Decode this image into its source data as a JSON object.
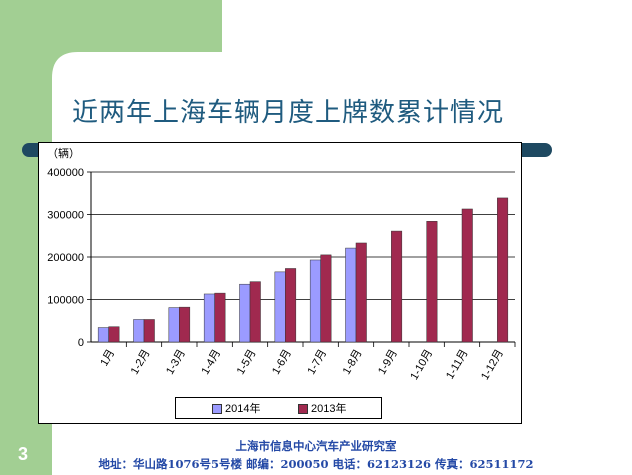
{
  "slide": {
    "title": "近两年上海车辆月度上牌数累计情况",
    "page_number": "3",
    "footer_org": "上海市信息中心汽车产业研究室",
    "footer_contact": "地址：华山路1076号5号楼 邮编：200050 电话：62123126 传真：62511172",
    "colors": {
      "green_panel": "#a2cf93",
      "title": "#1f5b7f",
      "bar_2014": "#9b9bff",
      "bar_2013": "#a0294f"
    }
  },
  "chart_data": {
    "type": "bar",
    "ylabel": "（辆）",
    "ylim": [
      0,
      400000
    ],
    "yticks": [
      "400000",
      "300000",
      "200000",
      "100000",
      "0"
    ],
    "categories": [
      "1月",
      "1-2月",
      "1-3月",
      "1-4月",
      "1-5月",
      "1-6月",
      "1-7月",
      "1-8月",
      "1-9月",
      "1-10月",
      "1-11月",
      "1-12月"
    ],
    "series": [
      {
        "name": "2014年",
        "color": "#9b9bff",
        "values": [
          34000,
          53000,
          81000,
          113000,
          136000,
          165000,
          193000,
          221000,
          null,
          null,
          null,
          null
        ]
      },
      {
        "name": "2013年",
        "color": "#a0294f",
        "values": [
          36000,
          53000,
          82000,
          115000,
          142000,
          173000,
          205000,
          233000,
          261000,
          284000,
          313000,
          339000
        ]
      }
    ],
    "legend_position": "bottom",
    "grid": true
  }
}
